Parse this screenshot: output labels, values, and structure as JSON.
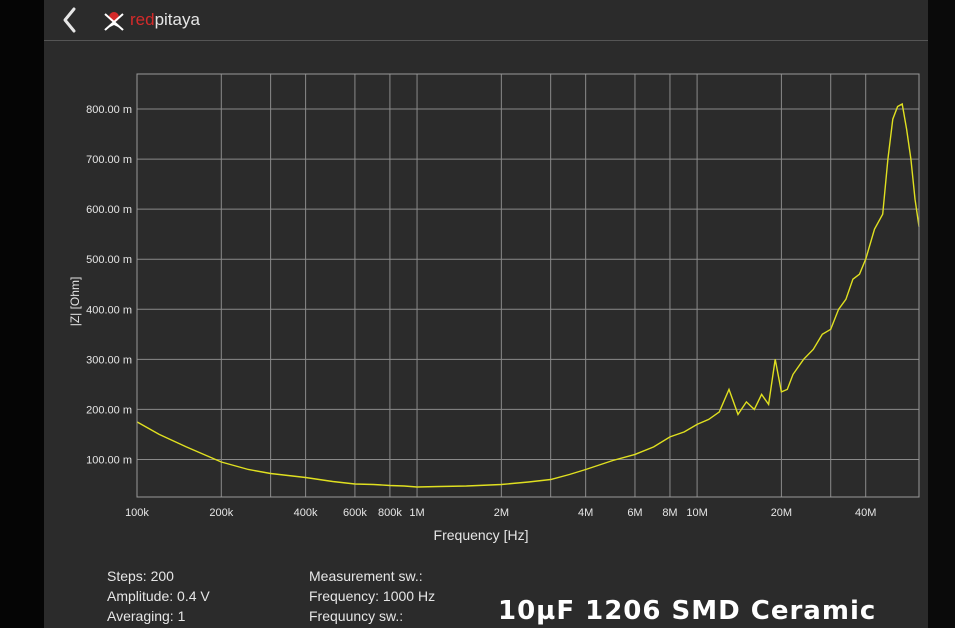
{
  "header": {
    "logo_part1": "red",
    "logo_part2": "pitaya"
  },
  "chart_data": {
    "type": "line",
    "xlabel": "Frequency [Hz]",
    "ylabel": "|Z| [Ohm]",
    "x_scale": "log",
    "xlim": [
      100000,
      62000000
    ],
    "ylim": [
      0.025,
      0.87
    ],
    "grid": true,
    "line_color": "#e0e020",
    "x_ticks": [
      {
        "v": 100000,
        "label": "100k"
      },
      {
        "v": 200000,
        "label": "200k"
      },
      {
        "v": 400000,
        "label": "400k"
      },
      {
        "v": 600000,
        "label": "600k"
      },
      {
        "v": 800000,
        "label": "800k"
      },
      {
        "v": 1000000,
        "label": "1M"
      },
      {
        "v": 2000000,
        "label": "2M"
      },
      {
        "v": 4000000,
        "label": "4M"
      },
      {
        "v": 6000000,
        "label": "6M"
      },
      {
        "v": 8000000,
        "label": "8M"
      },
      {
        "v": 10000000,
        "label": "10M"
      },
      {
        "v": 20000000,
        "label": "20M"
      },
      {
        "v": 40000000,
        "label": "40M"
      }
    ],
    "x_grid_extra": [
      300000,
      3000000,
      30000000
    ],
    "y_ticks": [
      {
        "v": 0.1,
        "label": "100.00 m"
      },
      {
        "v": 0.2,
        "label": "200.00 m"
      },
      {
        "v": 0.3,
        "label": "300.00 m"
      },
      {
        "v": 0.4,
        "label": "400.00 m"
      },
      {
        "v": 0.5,
        "label": "500.00 m"
      },
      {
        "v": 0.6,
        "label": "600.00 m"
      },
      {
        "v": 0.7,
        "label": "700.00 m"
      },
      {
        "v": 0.8,
        "label": "800.00 m"
      }
    ],
    "points": [
      [
        100000,
        0.175
      ],
      [
        120000,
        0.15
      ],
      [
        150000,
        0.125
      ],
      [
        200000,
        0.095
      ],
      [
        250000,
        0.08
      ],
      [
        300000,
        0.072
      ],
      [
        400000,
        0.064
      ],
      [
        500000,
        0.056
      ],
      [
        600000,
        0.051
      ],
      [
        700000,
        0.05
      ],
      [
        800000,
        0.048
      ],
      [
        900000,
        0.047
      ],
      [
        1000000,
        0.045
      ],
      [
        1200000,
        0.046
      ],
      [
        1500000,
        0.047
      ],
      [
        2000000,
        0.05
      ],
      [
        2500000,
        0.055
      ],
      [
        3000000,
        0.06
      ],
      [
        3500000,
        0.07
      ],
      [
        4000000,
        0.08
      ],
      [
        5000000,
        0.098
      ],
      [
        6000000,
        0.11
      ],
      [
        7000000,
        0.125
      ],
      [
        8000000,
        0.145
      ],
      [
        9000000,
        0.155
      ],
      [
        10000000,
        0.17
      ],
      [
        11000000,
        0.18
      ],
      [
        12000000,
        0.195
      ],
      [
        13000000,
        0.24
      ],
      [
        14000000,
        0.19
      ],
      [
        15000000,
        0.215
      ],
      [
        16000000,
        0.2
      ],
      [
        17000000,
        0.23
      ],
      [
        18000000,
        0.21
      ],
      [
        19000000,
        0.3
      ],
      [
        20000000,
        0.235
      ],
      [
        21000000,
        0.24
      ],
      [
        22000000,
        0.27
      ],
      [
        24000000,
        0.3
      ],
      [
        26000000,
        0.32
      ],
      [
        28000000,
        0.35
      ],
      [
        30000000,
        0.36
      ],
      [
        32000000,
        0.4
      ],
      [
        34000000,
        0.42
      ],
      [
        36000000,
        0.46
      ],
      [
        38000000,
        0.47
      ],
      [
        40000000,
        0.5
      ],
      [
        43000000,
        0.56
      ],
      [
        46000000,
        0.59
      ],
      [
        48000000,
        0.7
      ],
      [
        50000000,
        0.78
      ],
      [
        52000000,
        0.805
      ],
      [
        54000000,
        0.81
      ],
      [
        56000000,
        0.76
      ],
      [
        58000000,
        0.7
      ],
      [
        60000000,
        0.62
      ],
      [
        62000000,
        0.565
      ]
    ]
  },
  "info": {
    "steps": "Steps: 200",
    "amplitude": "Amplitude: 0.4 V",
    "averaging": "Averaging: 1",
    "measurement": "Measurement sw.:",
    "frequency": "Frequency: 1000 Hz",
    "frequency_sw": "Frequuncy sw.:"
  },
  "caption": "10µF 1206 SMD Ceramic"
}
